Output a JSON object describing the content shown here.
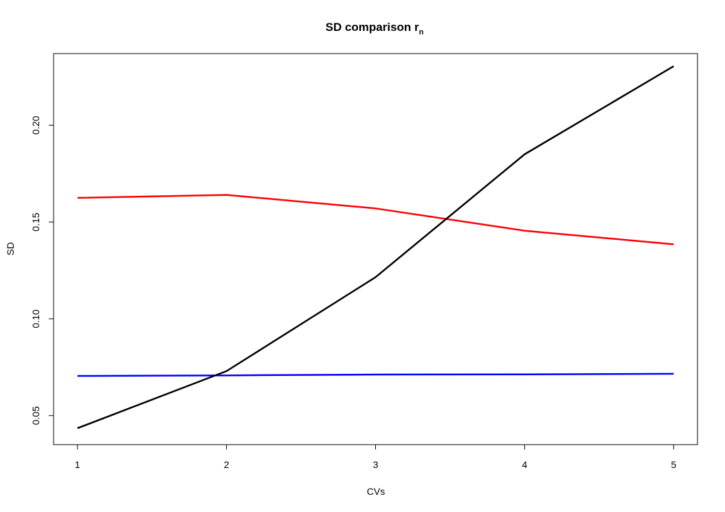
{
  "chart_data": {
    "type": "line",
    "title": "SD comparison r",
    "title_subscript": "n",
    "xlabel": "CVs",
    "ylabel": "SD",
    "x": [
      1,
      2,
      3,
      4,
      5
    ],
    "xticks": [
      "1",
      "2",
      "3",
      "4",
      "5"
    ],
    "yticks": [
      "0.05",
      "0.10",
      "0.15",
      "0.20"
    ],
    "ylim": [
      0.035,
      0.237
    ],
    "xlim": [
      0.84,
      5.16
    ],
    "grid": false,
    "series": [
      {
        "color": "#ff0000",
        "values": [
          0.1625,
          0.164,
          0.157,
          0.1455,
          0.1385
        ]
      },
      {
        "color": "#0000ff",
        "values": [
          0.0705,
          0.0708,
          0.0712,
          0.0713,
          0.0716
        ]
      },
      {
        "color": "#000000",
        "values": [
          0.0435,
          0.073,
          0.1215,
          0.185,
          0.2305
        ]
      }
    ]
  }
}
